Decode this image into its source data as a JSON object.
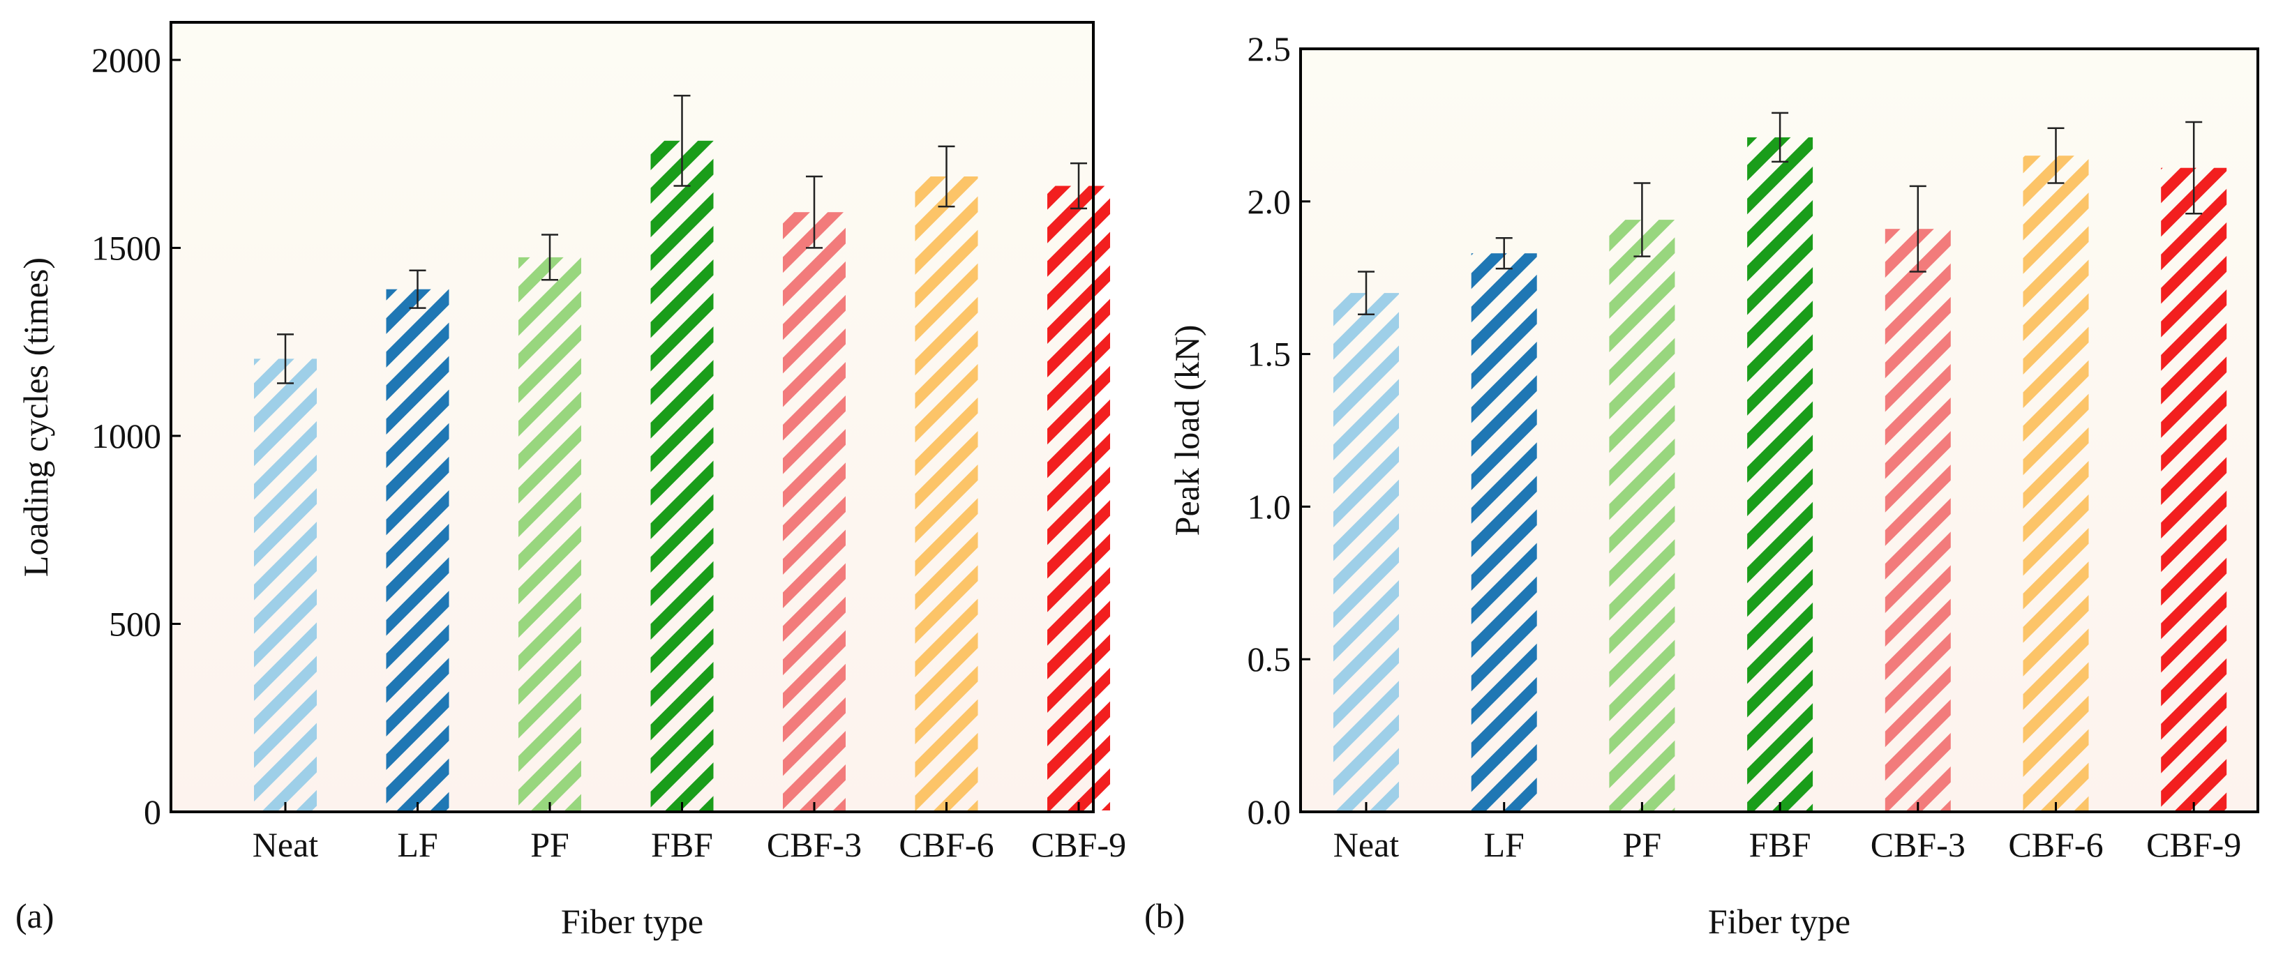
{
  "chart_data": [
    {
      "type": "bar",
      "panel_label": "(a)",
      "categories": [
        "Neat",
        "LF",
        "PF",
        "FBF",
        "CBF-3",
        "CBF-6",
        "CBF-9"
      ],
      "values": [
        1205,
        1390,
        1475,
        1785,
        1595,
        1690,
        1665
      ],
      "errors": [
        65,
        50,
        60,
        120,
        95,
        80,
        60
      ],
      "colors": [
        "#9ecfe8",
        "#1f77b4",
        "#98d67e",
        "#1a9d1a",
        "#f27b7b",
        "#fcc468",
        "#f21f1f"
      ],
      "title": "",
      "xlabel": "Fiber type",
      "ylabel": "Loading cycles (times)",
      "ylim": [
        0,
        2100
      ],
      "yticks": [
        0,
        500,
        1000,
        1500,
        2000
      ],
      "ytick_labels": [
        "0",
        "500",
        "1000",
        "1500",
        "2000"
      ],
      "grid": false
    },
    {
      "type": "bar",
      "panel_label": "(b)",
      "categories": [
        "Neat",
        "LF",
        "PF",
        "FBF",
        "CBF-3",
        "CBF-6",
        "CBF-9"
      ],
      "values": [
        1.7,
        1.83,
        1.94,
        2.21,
        1.91,
        2.15,
        2.11
      ],
      "errors": [
        0.07,
        0.05,
        0.12,
        0.08,
        0.14,
        0.09,
        0.15
      ],
      "colors": [
        "#9ecfe8",
        "#1f77b4",
        "#98d67e",
        "#1a9d1a",
        "#f27b7b",
        "#fcc468",
        "#f21f1f"
      ],
      "title": "",
      "xlabel": "Fiber type",
      "ylabel": "Peak load (kN)",
      "ylim": [
        0,
        2.5
      ],
      "yticks": [
        0,
        0.5,
        1.0,
        1.5,
        2.0,
        2.5
      ],
      "ytick_labels": [
        "0.0",
        "0.5",
        "1.0",
        "1.5",
        "2.0",
        "2.5"
      ],
      "grid": false
    }
  ]
}
